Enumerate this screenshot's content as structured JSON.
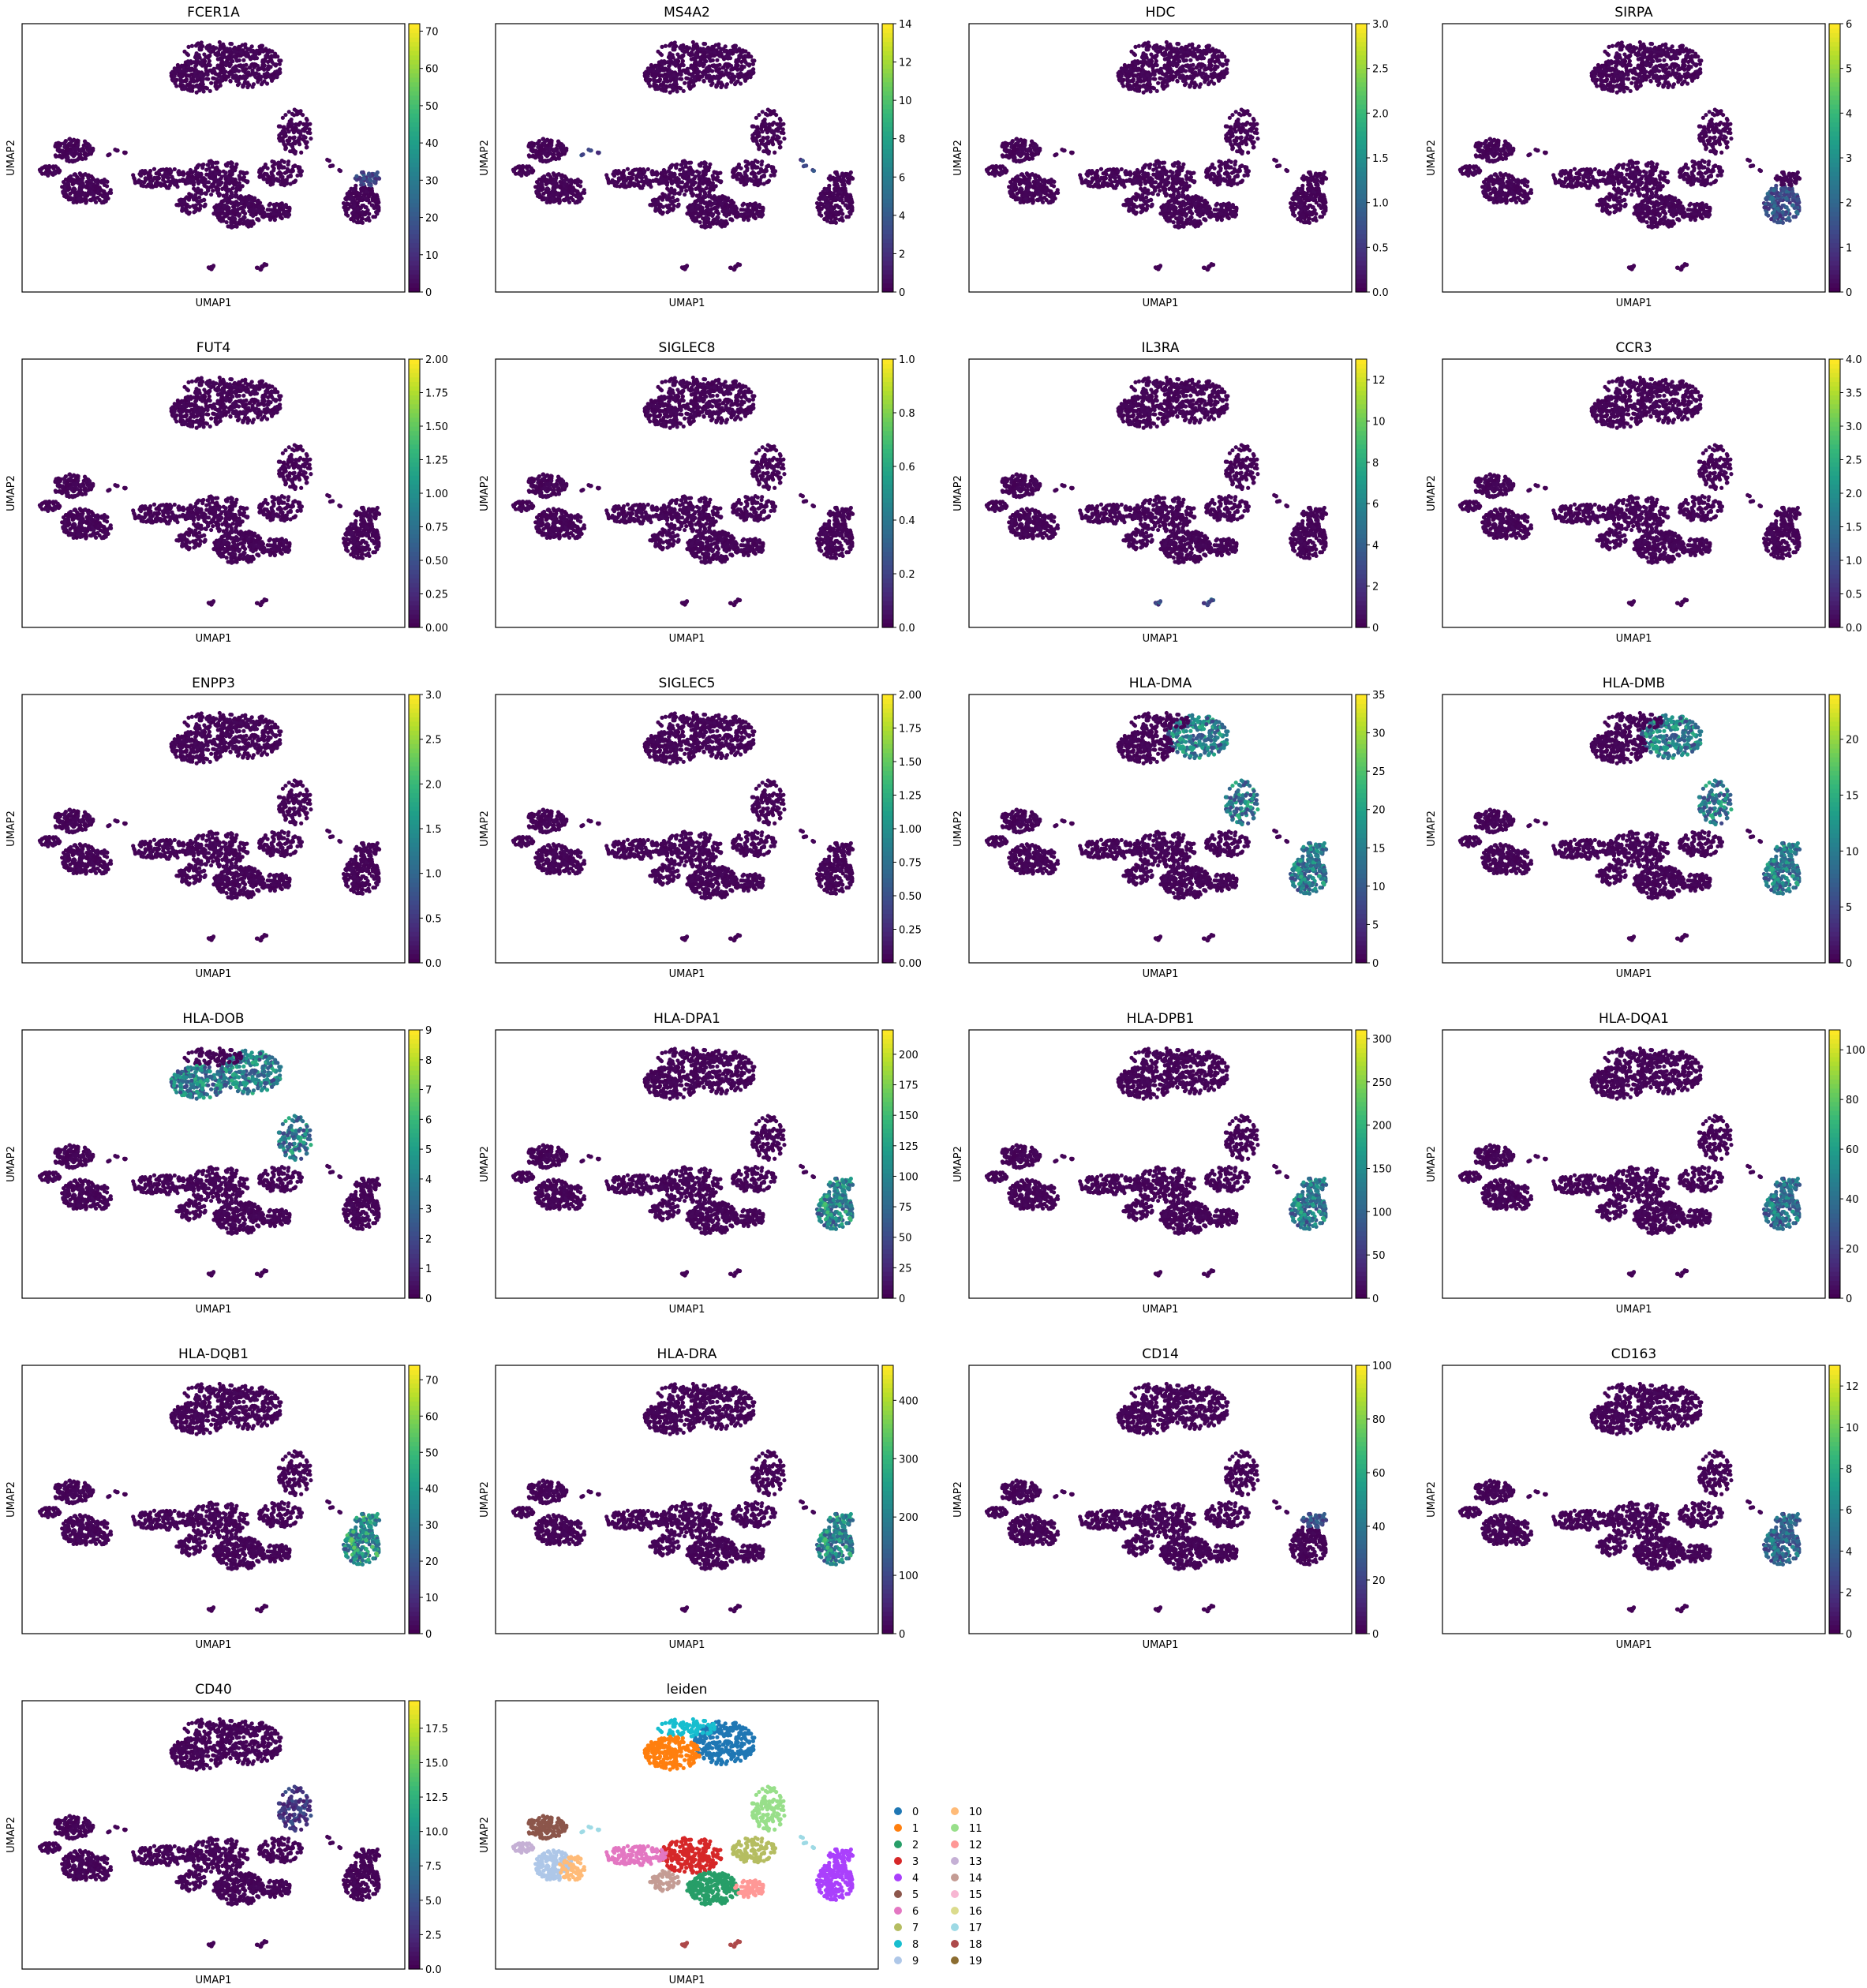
{
  "axis_labels": {
    "x": "UMAP1",
    "y": "UMAP2"
  },
  "chart_data": [
    {
      "type": "scatter",
      "title": "FCER1A",
      "xlabel": "UMAP1",
      "ylabel": "UMAP2",
      "colorbar": {
        "ticks": [
          "0",
          "10",
          "20",
          "30",
          "40",
          "50",
          "60",
          "70"
        ],
        "vmin": 0,
        "vmax": 72
      },
      "highlight": [
        "cluster15"
      ],
      "intensity": 0.25
    },
    {
      "type": "scatter",
      "title": "MS4A2",
      "xlabel": "UMAP1",
      "ylabel": "UMAP2",
      "colorbar": {
        "ticks": [
          "0",
          "2",
          "4",
          "6",
          "8",
          "10",
          "12",
          "14"
        ],
        "vmin": 0,
        "vmax": 14
      },
      "highlight": [
        "strand_tip"
      ],
      "intensity": 0.25
    },
    {
      "type": "scatter",
      "title": "HDC",
      "xlabel": "UMAP1",
      "ylabel": "UMAP2",
      "colorbar": {
        "ticks": [
          "0.0",
          "0.5",
          "1.0",
          "1.5",
          "2.0",
          "2.5",
          "3.0"
        ],
        "vmin": 0,
        "vmax": 3
      },
      "highlight": [],
      "intensity": 0
    },
    {
      "type": "scatter",
      "title": "SIRPA",
      "xlabel": "UMAP1",
      "ylabel": "UMAP2",
      "colorbar": {
        "ticks": [
          "0",
          "1",
          "2",
          "3",
          "4",
          "5",
          "6"
        ],
        "vmin": 0,
        "vmax": 6
      },
      "highlight": [
        "cluster4"
      ],
      "intensity": 0.3
    },
    {
      "type": "scatter",
      "title": "FUT4",
      "xlabel": "UMAP1",
      "ylabel": "UMAP2",
      "colorbar": {
        "ticks": [
          "0.00",
          "0.25",
          "0.50",
          "0.75",
          "1.00",
          "1.25",
          "1.50",
          "1.75",
          "2.00"
        ],
        "vmin": 0,
        "vmax": 2
      },
      "highlight": [],
      "intensity": 0
    },
    {
      "type": "scatter",
      "title": "SIGLEC8",
      "xlabel": "UMAP1",
      "ylabel": "UMAP2",
      "colorbar": {
        "ticks": [
          "0.0",
          "0.2",
          "0.4",
          "0.6",
          "0.8",
          "1.0"
        ],
        "vmin": 0,
        "vmax": 1
      },
      "highlight": [],
      "intensity": 0
    },
    {
      "type": "scatter",
      "title": "IL3RA",
      "xlabel": "UMAP1",
      "ylabel": "UMAP2",
      "colorbar": {
        "ticks": [
          "0",
          "2",
          "4",
          "6",
          "8",
          "10",
          "12"
        ],
        "vmin": 0,
        "vmax": 13
      },
      "highlight": [
        "small_islands"
      ],
      "intensity": 0.3
    },
    {
      "type": "scatter",
      "title": "CCR3",
      "xlabel": "UMAP1",
      "ylabel": "UMAP2",
      "colorbar": {
        "ticks": [
          "0.0",
          "0.5",
          "1.0",
          "1.5",
          "2.0",
          "2.5",
          "3.0",
          "3.5",
          "4.0"
        ],
        "vmin": 0,
        "vmax": 4
      },
      "highlight": [],
      "intensity": 0
    },
    {
      "type": "scatter",
      "title": "ENPP3",
      "xlabel": "UMAP1",
      "ylabel": "UMAP2",
      "colorbar": {
        "ticks": [
          "0.0",
          "0.5",
          "1.0",
          "1.5",
          "2.0",
          "2.5",
          "3.0"
        ],
        "vmin": 0,
        "vmax": 3
      },
      "highlight": [],
      "intensity": 0
    },
    {
      "type": "scatter",
      "title": "SIGLEC5",
      "xlabel": "UMAP1",
      "ylabel": "UMAP2",
      "colorbar": {
        "ticks": [
          "0.00",
          "0.25",
          "0.50",
          "0.75",
          "1.00",
          "1.25",
          "1.50",
          "1.75",
          "2.00"
        ],
        "vmin": 0,
        "vmax": 2
      },
      "highlight": [],
      "intensity": 0
    },
    {
      "type": "scatter",
      "title": "HLA-DMA",
      "xlabel": "UMAP1",
      "ylabel": "UMAP2",
      "colorbar": {
        "ticks": [
          "0",
          "5",
          "10",
          "15",
          "20",
          "25",
          "30",
          "35"
        ],
        "vmin": 0,
        "vmax": 35
      },
      "highlight": [
        "cluster15",
        "cluster4",
        "cluster16",
        "cluster0"
      ],
      "intensity": 0.5
    },
    {
      "type": "scatter",
      "title": "HLA-DMB",
      "xlabel": "UMAP1",
      "ylabel": "UMAP2",
      "colorbar": {
        "ticks": [
          "0",
          "5",
          "10",
          "15",
          "20"
        ],
        "vmin": 0,
        "vmax": 24
      },
      "highlight": [
        "cluster15",
        "cluster4",
        "cluster16",
        "cluster0"
      ],
      "intensity": 0.5
    },
    {
      "type": "scatter",
      "title": "HLA-DOB",
      "xlabel": "UMAP1",
      "ylabel": "UMAP2",
      "colorbar": {
        "ticks": [
          "0",
          "1",
          "2",
          "3",
          "4",
          "5",
          "6",
          "7",
          "8",
          "9"
        ],
        "vmin": 0,
        "vmax": 9
      },
      "highlight": [
        "cluster16",
        "cluster0",
        "cluster1"
      ],
      "intensity": 0.5
    },
    {
      "type": "scatter",
      "title": "HLA-DPA1",
      "xlabel": "UMAP1",
      "ylabel": "UMAP2",
      "colorbar": {
        "ticks": [
          "0",
          "25",
          "50",
          "75",
          "100",
          "125",
          "150",
          "175",
          "200"
        ],
        "vmin": 0,
        "vmax": 220
      },
      "highlight": [
        "cluster15",
        "cluster4"
      ],
      "intensity": 0.55
    },
    {
      "type": "scatter",
      "title": "HLA-DPB1",
      "xlabel": "UMAP1",
      "ylabel": "UMAP2",
      "colorbar": {
        "ticks": [
          "0",
          "50",
          "100",
          "150",
          "200",
          "250",
          "300"
        ],
        "vmin": 0,
        "vmax": 310
      },
      "highlight": [
        "cluster15",
        "cluster4"
      ],
      "intensity": 0.5
    },
    {
      "type": "scatter",
      "title": "HLA-DQA1",
      "xlabel": "UMAP1",
      "ylabel": "UMAP2",
      "colorbar": {
        "ticks": [
          "0",
          "20",
          "40",
          "60",
          "80",
          "100"
        ],
        "vmin": 0,
        "vmax": 108
      },
      "highlight": [
        "cluster15",
        "cluster4"
      ],
      "intensity": 0.45
    },
    {
      "type": "scatter",
      "title": "HLA-DQB1",
      "xlabel": "UMAP1",
      "ylabel": "UMAP2",
      "colorbar": {
        "ticks": [
          "0",
          "10",
          "20",
          "30",
          "40",
          "50",
          "60",
          "70"
        ],
        "vmin": 0,
        "vmax": 74
      },
      "highlight": [
        "cluster15",
        "cluster4"
      ],
      "intensity": 0.6
    },
    {
      "type": "scatter",
      "title": "HLA-DRA",
      "xlabel": "UMAP1",
      "ylabel": "UMAP2",
      "colorbar": {
        "ticks": [
          "0",
          "100",
          "200",
          "300",
          "400"
        ],
        "vmin": 0,
        "vmax": 460
      },
      "highlight": [
        "cluster15",
        "cluster4"
      ],
      "intensity": 0.55
    },
    {
      "type": "scatter",
      "title": "CD14",
      "xlabel": "UMAP1",
      "ylabel": "UMAP2",
      "colorbar": {
        "ticks": [
          "0",
          "20",
          "40",
          "60",
          "80",
          "100"
        ],
        "vmin": 0,
        "vmax": 100
      },
      "highlight": [
        "cluster15"
      ],
      "intensity": 0.3
    },
    {
      "type": "scatter",
      "title": "CD163",
      "xlabel": "UMAP1",
      "ylabel": "UMAP2",
      "colorbar": {
        "ticks": [
          "0",
          "2",
          "4",
          "6",
          "8",
          "10",
          "12"
        ],
        "vmin": 0,
        "vmax": 13
      },
      "highlight": [
        "cluster15",
        "cluster4"
      ],
      "intensity": 0.4
    },
    {
      "type": "scatter",
      "title": "CD40",
      "xlabel": "UMAP1",
      "ylabel": "UMAP2",
      "colorbar": {
        "ticks": [
          "0.0",
          "2.5",
          "5.0",
          "7.5",
          "10.0",
          "12.5",
          "15.0",
          "17.5"
        ],
        "vmin": 0,
        "vmax": 19.5
      },
      "highlight": [
        "cluster16"
      ],
      "intensity": 0.2
    },
    {
      "type": "scatter",
      "title": "leiden",
      "xlabel": "UMAP1",
      "ylabel": "UMAP2",
      "categorical": true,
      "legend": [
        "0",
        "1",
        "2",
        "3",
        "4",
        "5",
        "6",
        "7",
        "8",
        "9",
        "10",
        "11",
        "12",
        "13",
        "14",
        "15",
        "16",
        "17",
        "18",
        "19"
      ],
      "legend_colors": [
        "#1f77b4",
        "#ff7f0e",
        "#279e68",
        "#d62728",
        "#aa40fc",
        "#8c564b",
        "#e377c2",
        "#b5bd61",
        "#17becf",
        "#aec7e8",
        "#ffbb78",
        "#98df8a",
        "#ff9896",
        "#c5b0d5",
        "#c49c94",
        "#f7b6d2",
        "#dbdb8d",
        "#9edae5",
        "#ad494a",
        "#8c6d31"
      ]
    }
  ]
}
